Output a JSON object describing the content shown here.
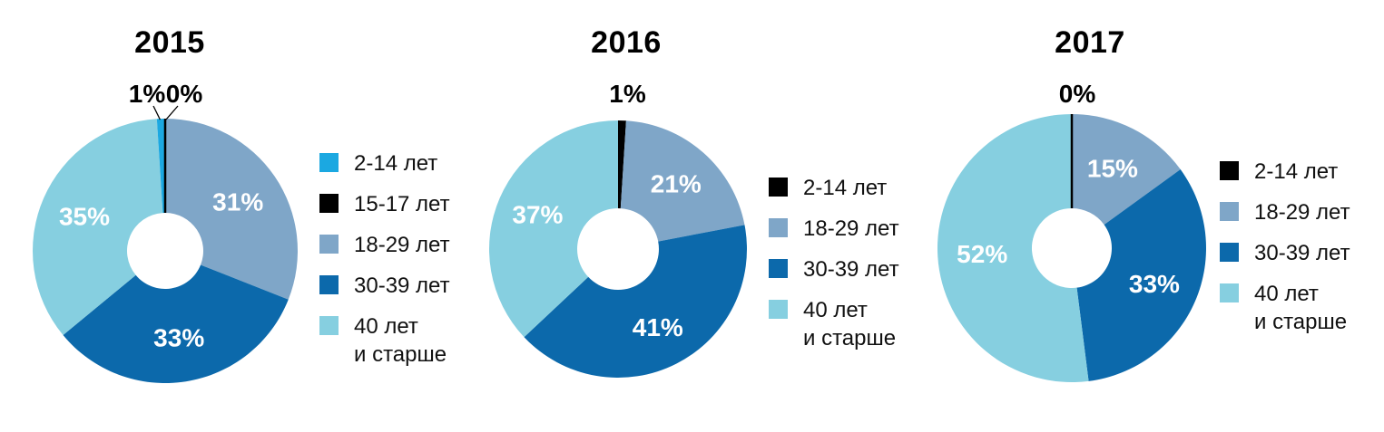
{
  "chart_data": [
    {
      "type": "pie",
      "subtype": "donut",
      "title": "2015",
      "unit": "%",
      "legend_position": "right",
      "categories": [
        "2-14 лет",
        "15-17 лет",
        "18-29 лет",
        "30-39 лет",
        "40 лет и старше"
      ],
      "values": [
        1,
        0,
        31,
        33,
        35
      ],
      "data_labels": [
        "1%",
        "0%",
        "31%",
        "33%",
        "35%"
      ],
      "colors": [
        "#1ba8e1",
        "#000000",
        "#7fa6c8",
        "#0c69ab",
        "#86cfe0"
      ],
      "legend_labels": [
        "2-14 лет",
        "15-17 лет",
        "18-29 лет",
        "30-39 лет",
        "40 лет\nи старше"
      ],
      "draw_order_clockwise_from_top": [
        1,
        2,
        3,
        4,
        0
      ]
    },
    {
      "type": "pie",
      "subtype": "donut",
      "title": "2016",
      "unit": "%",
      "legend_position": "right",
      "categories": [
        "2-14 лет",
        "18-29 лет",
        "30-39 лет",
        "40 лет и старше"
      ],
      "values": [
        1,
        21,
        41,
        37
      ],
      "data_labels": [
        "1%",
        "21%",
        "41%",
        "37%"
      ],
      "colors": [
        "#000000",
        "#7fa6c8",
        "#0c69ab",
        "#86cfe0"
      ],
      "legend_labels": [
        "2-14 лет",
        "18-29 лет",
        "30-39 лет",
        "40 лет\nи старше"
      ],
      "draw_order_clockwise_from_top": [
        0,
        1,
        2,
        3
      ]
    },
    {
      "type": "pie",
      "subtype": "donut",
      "title": "2017",
      "unit": "%",
      "legend_position": "right",
      "categories": [
        "2-14 лет",
        "18-29 лет",
        "30-39 лет",
        "40 лет и старше"
      ],
      "values": [
        0,
        15,
        33,
        52
      ],
      "data_labels": [
        "0%",
        "15%",
        "33%",
        "52%"
      ],
      "colors": [
        "#000000",
        "#7fa6c8",
        "#0c69ab",
        "#86cfe0"
      ],
      "legend_labels": [
        "2-14 лет",
        "18-29 лет",
        "30-39 лет",
        "40 лет\nи старше"
      ],
      "draw_order_clockwise_from_top": [
        0,
        1,
        2,
        3
      ]
    }
  ]
}
